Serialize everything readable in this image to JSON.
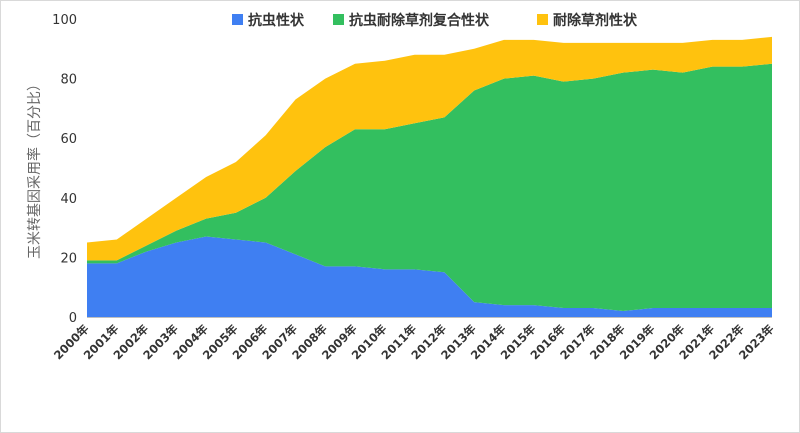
{
  "chart_data": {
    "type": "area",
    "stacked": true,
    "title": "",
    "xlabel": "",
    "ylabel": "玉米转基因采用率（百分比）",
    "ylim": [
      0,
      100
    ],
    "yticks": [
      0,
      20,
      40,
      60,
      80,
      100
    ],
    "grid": false,
    "legend_position": "top",
    "categories": [
      "2000年",
      "2001年",
      "2002年",
      "2003年",
      "2004年",
      "2005年",
      "2006年",
      "2007年",
      "2008年",
      "2009年",
      "2010年",
      "2011年",
      "2012年",
      "2013年",
      "2014年",
      "2015年",
      "2016年",
      "2017年",
      "2018年",
      "2019年",
      "2020年",
      "2021年",
      "2022年",
      "2023年"
    ],
    "series": [
      {
        "name": "抗虫性状",
        "color": "#3f7ff2",
        "values": [
          18,
          18,
          22,
          25,
          27,
          26,
          25,
          21,
          17,
          17,
          16,
          16,
          15,
          5,
          4,
          4,
          3,
          3,
          2,
          3,
          3,
          3,
          3,
          3
        ]
      },
      {
        "name": "抗虫耐除草剂复合性状",
        "color": "#33bf5f",
        "values": [
          1,
          1,
          2,
          4,
          6,
          9,
          15,
          28,
          40,
          46,
          47,
          49,
          52,
          71,
          76,
          77,
          76,
          77,
          80,
          80,
          79,
          81,
          81,
          82
        ]
      },
      {
        "name": "耐除草剂性状",
        "color": "#ffc20e",
        "values": [
          6,
          7,
          9,
          11,
          14,
          17,
          21,
          24,
          23,
          22,
          23,
          23,
          21,
          14,
          13,
          12,
          13,
          12,
          10,
          9,
          10,
          9,
          9,
          9
        ]
      }
    ]
  }
}
